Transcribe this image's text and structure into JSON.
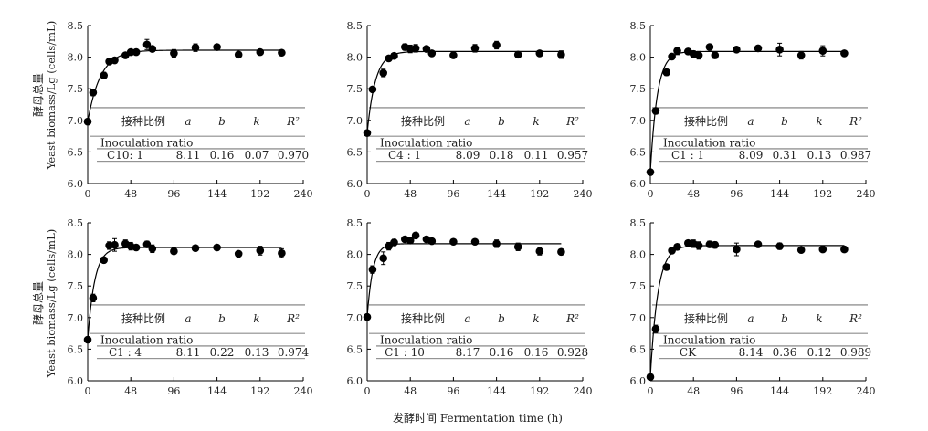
{
  "figure": {
    "ylabel_cn": "酵母总量",
    "ylabel_en": "Yeast biomass/Lg (cells/mL)",
    "xlabel": "发酵时间 Fermentation time (h)"
  },
  "table_header": {
    "ratio_cn": "接种比例",
    "ratio_en": "Inoculation ratio",
    "a": "a",
    "b": "b",
    "k": "k",
    "r2": "R²"
  },
  "axes": {
    "x_ticks": [
      "0",
      "48",
      "96",
      "144",
      "192",
      "240"
    ],
    "y_ticks": [
      "6.0",
      "6.5",
      "7.0",
      "7.5",
      "8.0",
      "8.5"
    ]
  },
  "chart_data": [
    {
      "type": "scatter",
      "xlim": [
        0,
        240
      ],
      "ylim": [
        6.0,
        8.5
      ],
      "x": [
        0,
        6,
        18,
        24,
        30,
        42,
        48,
        54,
        66,
        72,
        96,
        120,
        144,
        168,
        192,
        216
      ],
      "y": [
        6.98,
        7.44,
        7.71,
        7.93,
        7.95,
        8.03,
        8.08,
        8.08,
        8.2,
        8.13,
        8.06,
        8.15,
        8.16,
        8.04,
        8.08,
        8.07
      ],
      "err": [
        0.0,
        0.05,
        0.05,
        0.03,
        0.03,
        0.03,
        0.03,
        0.03,
        0.08,
        0.03,
        0.06,
        0.06,
        0.04,
        0.04,
        0.03,
        0.03
      ],
      "fit": {
        "a": 8.11,
        "b": 0.16,
        "k": 0.07
      },
      "table": {
        "ratio": "C10: 1",
        "a": "8.11",
        "b": "0.16",
        "k": "0.07",
        "r2": "0.970"
      }
    },
    {
      "type": "scatter",
      "xlim": [
        0,
        240
      ],
      "ylim": [
        6.0,
        8.5
      ],
      "x": [
        0,
        6,
        18,
        24,
        30,
        42,
        48,
        54,
        66,
        72,
        96,
        120,
        144,
        168,
        192,
        216
      ],
      "y": [
        6.8,
        7.49,
        7.75,
        7.98,
        8.02,
        8.16,
        8.13,
        8.14,
        8.13,
        8.06,
        8.03,
        8.14,
        8.19,
        8.04,
        8.06,
        8.04
      ],
      "err": [
        0.0,
        0.03,
        0.06,
        0.04,
        0.03,
        0.05,
        0.06,
        0.06,
        0.03,
        0.03,
        0.04,
        0.06,
        0.06,
        0.03,
        0.03,
        0.06
      ],
      "fit": {
        "a": 8.09,
        "b": 0.18,
        "k": 0.11
      },
      "table": {
        "ratio": "C4 : 1",
        "a": "8.09",
        "b": "0.18",
        "k": "0.11",
        "r2": "0.957"
      }
    },
    {
      "type": "scatter",
      "xlim": [
        0,
        240
      ],
      "ylim": [
        6.0,
        8.5
      ],
      "x": [
        0,
        6,
        18,
        24,
        30,
        42,
        48,
        54,
        66,
        72,
        96,
        120,
        144,
        168,
        192,
        216
      ],
      "y": [
        6.18,
        7.15,
        7.76,
        8.01,
        8.1,
        8.09,
        8.05,
        8.03,
        8.16,
        8.03,
        8.12,
        8.14,
        8.12,
        8.03,
        8.1,
        8.06
      ],
      "err": [
        0.0,
        0.05,
        0.05,
        0.03,
        0.06,
        0.03,
        0.05,
        0.06,
        0.03,
        0.05,
        0.03,
        0.03,
        0.1,
        0.06,
        0.08,
        0.03
      ],
      "fit": {
        "a": 8.09,
        "b": 0.31,
        "k": 0.13
      },
      "table": {
        "ratio": "C1 : 1",
        "a": "8.09",
        "b": "0.31",
        "k": "0.13",
        "r2": "0.987"
      }
    },
    {
      "type": "scatter",
      "xlim": [
        0,
        240
      ],
      "ylim": [
        6.0,
        8.5
      ],
      "x": [
        0,
        6,
        18,
        24,
        30,
        42,
        48,
        54,
        66,
        72,
        96,
        120,
        144,
        168,
        192,
        216
      ],
      "y": [
        6.65,
        7.31,
        7.91,
        8.14,
        8.15,
        8.17,
        8.13,
        8.11,
        8.16,
        8.09,
        8.05,
        8.1,
        8.11,
        8.01,
        8.06,
        8.02
      ],
      "err": [
        0.0,
        0.06,
        0.04,
        0.06,
        0.1,
        0.06,
        0.06,
        0.04,
        0.05,
        0.06,
        0.03,
        0.03,
        0.03,
        0.03,
        0.07,
        0.07
      ],
      "fit": {
        "a": 8.11,
        "b": 0.22,
        "k": 0.13
      },
      "table": {
        "ratio": "C1 : 4",
        "a": "8.11",
        "b": "0.22",
        "k": "0.13",
        "r2": "0.974"
      }
    },
    {
      "type": "scatter",
      "xlim": [
        0,
        240
      ],
      "ylim": [
        6.0,
        8.5
      ],
      "x": [
        0,
        6,
        18,
        24,
        30,
        42,
        48,
        54,
        66,
        72,
        96,
        120,
        144,
        168,
        192,
        216
      ],
      "y": [
        7.01,
        7.76,
        7.94,
        8.13,
        8.19,
        8.24,
        8.22,
        8.3,
        8.24,
        8.21,
        8.2,
        8.2,
        8.17,
        8.12,
        8.05,
        8.04
      ],
      "err": [
        0.0,
        0.06,
        0.1,
        0.06,
        0.05,
        0.03,
        0.03,
        0.03,
        0.03,
        0.03,
        0.03,
        0.03,
        0.06,
        0.06,
        0.06,
        0.03
      ],
      "fit": {
        "a": 8.17,
        "b": 0.16,
        "k": 0.16
      },
      "table": {
        "ratio": "C1 : 10",
        "a": "8.17",
        "b": "0.16",
        "k": "0.16",
        "r2": "0.928"
      }
    },
    {
      "type": "scatter",
      "xlim": [
        0,
        240
      ],
      "ylim": [
        6.0,
        8.5
      ],
      "x": [
        0,
        6,
        18,
        24,
        30,
        42,
        48,
        54,
        66,
        72,
        96,
        120,
        144,
        168,
        192,
        216
      ],
      "y": [
        6.06,
        6.82,
        7.8,
        8.06,
        8.12,
        8.18,
        8.17,
        8.14,
        8.16,
        8.15,
        8.08,
        8.16,
        8.13,
        8.07,
        8.08,
        8.08
      ],
      "err": [
        0.0,
        0.06,
        0.04,
        0.04,
        0.04,
        0.03,
        0.06,
        0.06,
        0.05,
        0.05,
        0.1,
        0.03,
        0.05,
        0.03,
        0.03,
        0.03
      ],
      "fit": {
        "a": 8.14,
        "b": 0.36,
        "k": 0.12
      },
      "table": {
        "ratio": "CK",
        "a": "8.14",
        "b": "0.36",
        "k": "0.12",
        "r2": "0.989"
      }
    }
  ]
}
